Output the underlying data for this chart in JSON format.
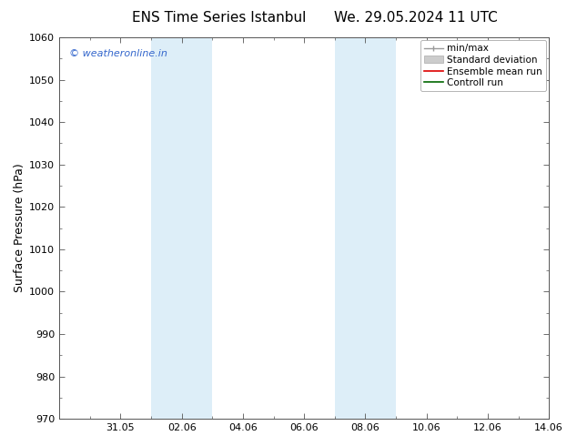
{
  "title_left": "ENS Time Series Istanbul",
  "title_right": "We. 29.05.2024 11 UTC",
  "ylabel": "Surface Pressure (hPa)",
  "ylim": [
    970,
    1060
  ],
  "yticks": [
    970,
    980,
    990,
    1000,
    1010,
    1020,
    1030,
    1040,
    1050,
    1060
  ],
  "xlim": [
    0,
    16
  ],
  "xtick_labels": [
    "31.05",
    "02.06",
    "04.06",
    "06.06",
    "08.06",
    "10.06",
    "12.06",
    "14.06"
  ],
  "xtick_positions": [
    2,
    4,
    6,
    8,
    10,
    12,
    14,
    16
  ],
  "shaded_bands": [
    {
      "x_start": 3.0,
      "x_end": 5.0,
      "color": "#ddeef8"
    },
    {
      "x_start": 9.0,
      "x_end": 11.0,
      "color": "#ddeef8"
    }
  ],
  "watermark_text": "© weatheronline.in",
  "watermark_color": "#3366cc",
  "background_color": "#ffffff",
  "spine_color": "#555555",
  "tick_color": "#555555",
  "title_fontsize": 11,
  "axis_label_fontsize": 9,
  "tick_fontsize": 8,
  "legend_fontsize": 7.5
}
